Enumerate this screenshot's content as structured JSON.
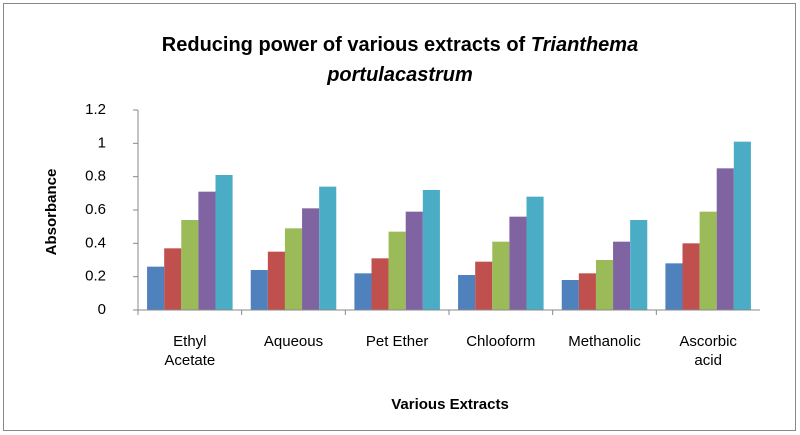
{
  "chart_data": {
    "type": "bar",
    "title": [
      "Reducing power of various extracts of",
      "Trianthema portulacastrum"
    ],
    "x_label": "Various Extracts",
    "y_label": "Absorbance",
    "categories": [
      "Ethyl Acetate",
      "Aqueous",
      "Pet Ether",
      "Chlooform",
      "Methanolic",
      "Ascorbic acid"
    ],
    "series": [
      {
        "color": "#4f81bd",
        "values": [
          0.26,
          0.24,
          0.22,
          0.21,
          0.18,
          0.28
        ]
      },
      {
        "color": "#c0504d",
        "values": [
          0.37,
          0.35,
          0.31,
          0.29,
          0.22,
          0.4
        ]
      },
      {
        "color": "#9bbb59",
        "values": [
          0.54,
          0.49,
          0.47,
          0.41,
          0.3,
          0.59
        ]
      },
      {
        "color": "#8064a2",
        "values": [
          0.71,
          0.61,
          0.59,
          0.56,
          0.41,
          0.85
        ]
      },
      {
        "color": "#4bacc6",
        "values": [
          0.81,
          0.74,
          0.72,
          0.68,
          0.54,
          1.01
        ]
      }
    ],
    "ylim": [
      0,
      1.2
    ],
    "yticks": [
      0,
      0.2,
      0.4,
      0.6,
      0.8,
      1,
      1.2
    ],
    "grid": false
  }
}
